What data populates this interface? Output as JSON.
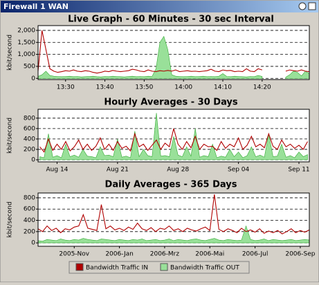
{
  "window": {
    "title": "Firewall 1 WAN"
  },
  "chart_data": [
    {
      "type": "line",
      "title": "Live Graph - 60 Minutes - 30 sec Interval",
      "ylabel": "kbit/second",
      "xlim": [
        803,
        872
      ],
      "xticks": [
        {
          "value": 810,
          "label": "13:30"
        },
        {
          "value": 820,
          "label": "13:40"
        },
        {
          "value": 830,
          "label": "13:50"
        },
        {
          "value": 840,
          "label": "14:00"
        },
        {
          "value": 850,
          "label": "14:10"
        },
        {
          "value": 860,
          "label": "14:20"
        }
      ],
      "ylim": [
        -50,
        2200
      ],
      "yticks": [
        0,
        500,
        {
          "value": 1000,
          "label": "1,000"
        },
        {
          "value": 1500,
          "label": "1,500"
        },
        {
          "value": 2000,
          "label": "2,000"
        }
      ],
      "grid": true,
      "x": [
        803,
        804,
        805,
        806,
        807,
        808,
        809,
        810,
        811,
        812,
        813,
        814,
        815,
        816,
        817,
        818,
        819,
        820,
        821,
        822,
        823,
        824,
        825,
        826,
        827,
        828,
        829,
        830,
        831,
        832,
        833,
        834,
        835,
        836,
        837,
        838,
        839,
        840,
        841,
        842,
        843,
        844,
        845,
        846,
        847,
        848,
        849,
        850,
        851,
        852,
        853,
        854,
        855,
        856,
        857,
        858,
        859,
        860,
        861,
        862,
        863,
        864,
        865,
        866,
        867,
        868,
        869,
        870,
        871,
        872
      ],
      "series": [
        {
          "name": "Bandwidth Traffic IN",
          "color": "#b00000",
          "values": [
            300,
            2000,
            1200,
            400,
            300,
            250,
            280,
            320,
            300,
            350,
            300,
            280,
            320,
            300,
            250,
            220,
            250,
            300,
            280,
            330,
            300,
            280,
            300,
            320,
            380,
            350,
            300,
            280,
            350,
            300,
            280,
            320,
            300,
            330,
            300,
            350,
            280,
            300,
            320,
            290,
            300,
            280,
            300,
            320,
            380,
            300,
            280,
            350,
            320,
            330,
            280,
            300,
            280,
            400,
            300,
            280,
            400,
            350,
            null,
            null,
            null,
            null,
            null,
            300,
            350,
            320,
            300,
            350,
            300,
            280
          ]
        },
        {
          "name": "Bandwidth Traffic OUT",
          "color": "#99e099",
          "values": [
            80,
            150,
            300,
            120,
            90,
            80,
            70,
            80,
            90,
            70,
            80,
            60,
            70,
            80,
            90,
            70,
            60,
            80,
            70,
            90,
            80,
            70,
            60,
            80,
            90,
            70,
            80,
            70,
            90,
            80,
            400,
            1500,
            1750,
            1200,
            150,
            90,
            80,
            70,
            80,
            90,
            70,
            80,
            90,
            70,
            80,
            70,
            90,
            200,
            80,
            70,
            90,
            80,
            70,
            60,
            80,
            70,
            120,
            80,
            null,
            null,
            null,
            null,
            null,
            50,
            150,
            300,
            250,
            100,
            300,
            200
          ]
        }
      ]
    },
    {
      "type": "line",
      "title": "Hourly Averages - 30 Days",
      "ylabel": "kbit/second",
      "xlim": [
        223.8,
        255.2
      ],
      "xticks": [
        {
          "value": 226,
          "label": "Aug 14"
        },
        {
          "value": 233,
          "label": "Aug 21"
        },
        {
          "value": 240,
          "label": "Aug 28"
        },
        {
          "value": 247,
          "label": "Sep 04"
        },
        {
          "value": 254,
          "label": "Sep 11"
        }
      ],
      "ylim": [
        -40,
        970
      ],
      "yticks": [
        0,
        200,
        400,
        600,
        800
      ],
      "grid": true,
      "x": [
        224,
        224.5,
        225,
        225.5,
        226,
        226.5,
        227,
        227.5,
        228,
        228.5,
        229,
        229.5,
        230,
        230.5,
        231,
        231.5,
        232,
        232.5,
        233,
        233.5,
        234,
        234.5,
        235,
        235.5,
        236,
        236.5,
        237,
        237.5,
        238,
        238.5,
        239,
        239.5,
        240,
        240.5,
        241,
        241.5,
        242,
        242.5,
        243,
        243.5,
        244,
        244.5,
        245,
        245.5,
        246,
        246.5,
        247,
        247.5,
        248,
        248.5,
        249,
        249.5,
        250,
        250.5,
        251,
        251.5,
        252,
        252.5,
        253,
        253.5,
        254,
        254.5,
        255
      ],
      "series": [
        {
          "color": "#b00000",
          "values": [
            250,
            150,
            400,
            180,
            300,
            200,
            350,
            170,
            250,
            380,
            200,
            300,
            180,
            260,
            420,
            200,
            300,
            180,
            350,
            220,
            260,
            170,
            500,
            250,
            300,
            180,
            280,
            380,
            200,
            320,
            250,
            600,
            300,
            200,
            350,
            230,
            450,
            200,
            300,
            250,
            260,
            180,
            350,
            220,
            300,
            250,
            420,
            200,
            280,
            450,
            250,
            300,
            230,
            500,
            260,
            200,
            380,
            250,
            300,
            220,
            280,
            200,
            350
          ]
        },
        {
          "color": "#99e099",
          "values": [
            60,
            40,
            500,
            50,
            80,
            40,
            300,
            60,
            90,
            50,
            200,
            70,
            60,
            40,
            250,
            80,
            90,
            60,
            400,
            50,
            70,
            40,
            550,
            60,
            200,
            80,
            60,
            900,
            70,
            80,
            60,
            450,
            90,
            60,
            250,
            70,
            600,
            50,
            80,
            60,
            300,
            40,
            70,
            50,
            200,
            60,
            150,
            40,
            80,
            250,
            60,
            90,
            50,
            500,
            60,
            70,
            300,
            50,
            80,
            40,
            150,
            60,
            100
          ]
        }
      ]
    },
    {
      "type": "line",
      "title": "Daily Averages - 365 Days",
      "ylabel": "kbit/second",
      "xlim": [
        -1.6,
        10.4
      ],
      "xticks": [
        {
          "value": 0,
          "label": "2005-Nov"
        },
        {
          "value": 2,
          "label": "2006-Jan"
        },
        {
          "value": 4,
          "label": "2006-Mrz"
        },
        {
          "value": 6,
          "label": "2006-Mai"
        },
        {
          "value": 8,
          "label": "2006-Jul"
        },
        {
          "value": 10,
          "label": "2006-Sep"
        }
      ],
      "ylim": [
        -60,
        885
      ],
      "yticks": [
        0,
        200,
        400,
        600,
        800
      ],
      "grid": true,
      "x": [
        -1.6,
        -1.4,
        -1.2,
        -1,
        -0.8,
        -0.6,
        -0.4,
        -0.2,
        0,
        0.2,
        0.4,
        0.6,
        0.8,
        1,
        1.2,
        1.4,
        1.6,
        1.8,
        2,
        2.2,
        2.4,
        2.6,
        2.8,
        3,
        3.2,
        3.4,
        3.6,
        3.8,
        4,
        4.2,
        4.4,
        4.6,
        4.8,
        5,
        5.2,
        5.4,
        5.6,
        5.8,
        6,
        6.2,
        6.4,
        6.6,
        6.8,
        7,
        7.2,
        7.4,
        7.6,
        7.8,
        8,
        8.2,
        8.4,
        8.6,
        8.8,
        9,
        9.2,
        9.4,
        9.6,
        9.8,
        10,
        10.2,
        10.4
      ],
      "series": [
        {
          "color": "#b00000",
          "values": [
            250,
            200,
            300,
            220,
            260,
            180,
            250,
            230,
            280,
            300,
            500,
            260,
            240,
            220,
            680,
            250,
            300,
            230,
            260,
            220,
            280,
            240,
            350,
            250,
            220,
            270,
            200,
            260,
            240,
            300,
            220,
            250,
            200,
            260,
            230,
            210,
            250,
            280,
            220,
            860,
            240,
            200,
            250,
            220,
            180,
            260,
            200,
            230,
            190,
            250,
            170,
            210,
            180,
            220,
            160,
            200,
            250,
            180,
            220,
            190,
            230
          ]
        },
        {
          "color": "#99e099",
          "values": [
            40,
            30,
            60,
            50,
            40,
            70,
            50,
            40,
            60,
            50,
            80,
            60,
            50,
            40,
            70,
            60,
            50,
            40,
            60,
            50,
            40,
            60,
            50,
            70,
            40,
            50,
            60,
            40,
            50,
            70,
            40,
            60,
            50,
            40,
            60,
            70,
            50,
            40,
            60,
            80,
            50,
            40,
            60,
            50,
            40,
            50,
            300,
            60,
            40,
            50,
            70,
            40,
            60,
            50,
            40,
            50,
            60,
            40,
            50,
            60,
            50
          ]
        }
      ]
    }
  ]
}
